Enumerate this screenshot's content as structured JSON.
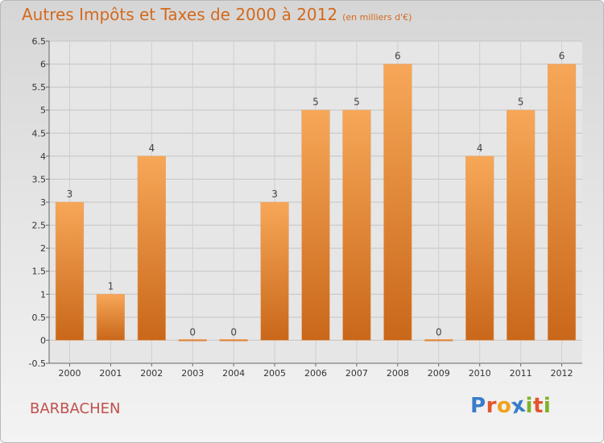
{
  "title": "Autres Impôts et Taxes de 2000 à 2012",
  "subtitle": "(en milliers d'€)",
  "commune": "BARBACHEN",
  "logo": {
    "text": "Proxiti",
    "letters": [
      "P",
      "r",
      "o",
      "x",
      "i",
      "t",
      "i"
    ],
    "colors": [
      "#3a7dc9",
      "#e2552d",
      "#f0a21b",
      "#3a7dc9",
      "#7cb32a",
      "#e2552d",
      "#7cb32a"
    ]
  },
  "chart_data": {
    "type": "bar",
    "categories": [
      "2000",
      "2001",
      "2002",
      "2003",
      "2004",
      "2005",
      "2006",
      "2007",
      "2008",
      "2009",
      "2010",
      "2011",
      "2012"
    ],
    "values": [
      3,
      1,
      4,
      0,
      0,
      3,
      5,
      5,
      6,
      0,
      4,
      5,
      6
    ],
    "data_labels": [
      "3",
      "1",
      "4",
      "0",
      "0",
      "3",
      "5",
      "5",
      "6",
      "0",
      "4",
      "5",
      "6"
    ],
    "yticks": [
      "-0.5",
      "0",
      "0.5",
      "1",
      "1.5",
      "2",
      "2.5",
      "3",
      "3.5",
      "4",
      "4.5",
      "5",
      "5.5",
      "6",
      "6.5"
    ],
    "ylim": [
      -0.5,
      6.5
    ],
    "title": "Autres Impôts et Taxes de 2000 à 2012",
    "xlabel": "",
    "ylabel": "",
    "grid": true,
    "bar_color": "#f0933c"
  }
}
